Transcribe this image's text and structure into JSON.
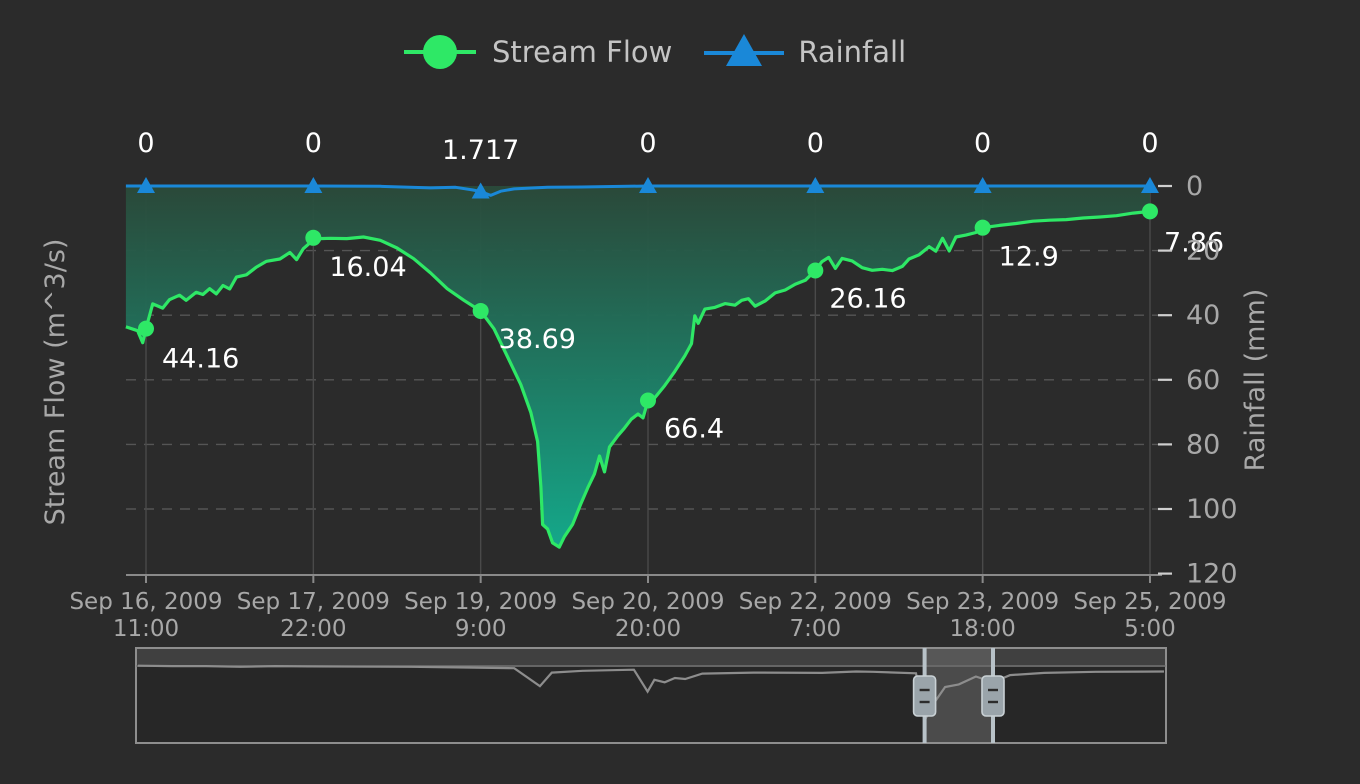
{
  "colors": {
    "background": "#2b2b2b",
    "stream_flow": "#2ee866",
    "rainfall": "#1a88d8",
    "area_top": "#2a4a3a",
    "area_bottom": "#14a88a",
    "axis": "#9a9a9a",
    "grid": "#555555",
    "text": "#ffffff",
    "muted_text": "#a8a8a8"
  },
  "legend": [
    {
      "name": "Stream Flow",
      "icon": "circle-marker-icon",
      "color": "#2ee866"
    },
    {
      "name": "Rainfall",
      "icon": "triangle-marker-icon",
      "color": "#1a88d8"
    }
  ],
  "chart_data": {
    "type": "line",
    "title": "",
    "ylabel_left": "Stream Flow (m^3/s)",
    "ylabel_right": "Rainfall (mm)",
    "ylim_right": [
      0,
      120
    ],
    "right_axis_reversed": true,
    "right_ticks": [
      "0",
      "20",
      "40",
      "60",
      "80",
      "100",
      "120"
    ],
    "grid": "horizontal-dashed",
    "legend_position": "top-center",
    "categories": [
      [
        "Sep 16, 2009",
        "11:00"
      ],
      [
        "Sep 17, 2009",
        "22:00"
      ],
      [
        "Sep 19, 2009",
        "9:00"
      ],
      [
        "Sep 20, 2009",
        "20:00"
      ],
      [
        "Sep 22, 2009",
        "7:00"
      ],
      [
        "Sep 23, 2009",
        "18:00"
      ],
      [
        "Sep 25, 2009",
        "5:00"
      ]
    ],
    "series": [
      {
        "name": "Stream Flow",
        "marker": "circle",
        "labeled_values": [
          "44.16",
          "16.04",
          "38.69",
          "66.4",
          "26.16",
          "12.9",
          "7.86"
        ],
        "trace": [
          [
            -0.12,
            43.6
          ],
          [
            -0.05,
            44.8
          ],
          [
            -0.02,
            48.5
          ],
          [
            0.0,
            44.16
          ],
          [
            0.04,
            36.5
          ],
          [
            0.1,
            37.8
          ],
          [
            0.14,
            35.2
          ],
          [
            0.2,
            33.8
          ],
          [
            0.24,
            35.4
          ],
          [
            0.3,
            32.9
          ],
          [
            0.34,
            33.6
          ],
          [
            0.38,
            31.8
          ],
          [
            0.42,
            33.4
          ],
          [
            0.46,
            30.8
          ],
          [
            0.5,
            31.9
          ],
          [
            0.54,
            28.2
          ],
          [
            0.6,
            27.5
          ],
          [
            0.66,
            25.1
          ],
          [
            0.72,
            23.3
          ],
          [
            0.8,
            22.6
          ],
          [
            0.86,
            20.6
          ],
          [
            0.9,
            22.8
          ],
          [
            0.94,
            19.4
          ],
          [
            0.98,
            17.6
          ],
          [
            1.0,
            16.04
          ],
          [
            1.04,
            16.3
          ],
          [
            1.1,
            16.2
          ],
          [
            1.2,
            16.3
          ],
          [
            1.3,
            15.8
          ],
          [
            1.4,
            16.8
          ],
          [
            1.5,
            19.2
          ],
          [
            1.6,
            22.5
          ],
          [
            1.7,
            26.9
          ],
          [
            1.8,
            31.8
          ],
          [
            1.9,
            35.4
          ],
          [
            2.0,
            38.69
          ],
          [
            2.08,
            44.2
          ],
          [
            2.16,
            52.8
          ],
          [
            2.24,
            61.5
          ],
          [
            2.3,
            70.2
          ],
          [
            2.34,
            79.1
          ],
          [
            2.36,
            93.2
          ],
          [
            2.37,
            104.8
          ],
          [
            2.4,
            106.2
          ],
          [
            2.43,
            110.5
          ],
          [
            2.47,
            111.8
          ],
          [
            2.5,
            108.6
          ],
          [
            2.55,
            104.7
          ],
          [
            2.6,
            98.2
          ],
          [
            2.64,
            93.4
          ],
          [
            2.68,
            89.2
          ],
          [
            2.71,
            83.6
          ],
          [
            2.74,
            88.5
          ],
          [
            2.77,
            80.8
          ],
          [
            2.82,
            77.3
          ],
          [
            2.86,
            74.9
          ],
          [
            2.9,
            72.2
          ],
          [
            2.94,
            70.6
          ],
          [
            2.97,
            71.8
          ],
          [
            3.0,
            66.4
          ],
          [
            3.04,
            65.6
          ],
          [
            3.1,
            61.8
          ],
          [
            3.16,
            57.4
          ],
          [
            3.22,
            52.6
          ],
          [
            3.26,
            48.8
          ],
          [
            3.28,
            40.2
          ],
          [
            3.3,
            42.5
          ],
          [
            3.34,
            38.1
          ],
          [
            3.4,
            37.6
          ],
          [
            3.46,
            36.4
          ],
          [
            3.52,
            36.9
          ],
          [
            3.56,
            35.4
          ],
          [
            3.6,
            34.9
          ],
          [
            3.64,
            37.2
          ],
          [
            3.7,
            35.6
          ],
          [
            3.76,
            33.1
          ],
          [
            3.82,
            32.2
          ],
          [
            3.88,
            30.4
          ],
          [
            3.94,
            29.2
          ],
          [
            4.0,
            26.16
          ],
          [
            4.04,
            23.4
          ],
          [
            4.08,
            22.1
          ],
          [
            4.12,
            25.5
          ],
          [
            4.16,
            22.4
          ],
          [
            4.22,
            23.2
          ],
          [
            4.28,
            25.3
          ],
          [
            4.34,
            26.1
          ],
          [
            4.4,
            25.8
          ],
          [
            4.46,
            26.2
          ],
          [
            4.52,
            24.9
          ],
          [
            4.56,
            22.6
          ],
          [
            4.62,
            21.3
          ],
          [
            4.68,
            18.8
          ],
          [
            4.72,
            20.2
          ],
          [
            4.76,
            16.2
          ],
          [
            4.8,
            20.1
          ],
          [
            4.84,
            15.8
          ],
          [
            4.9,
            15.2
          ],
          [
            4.96,
            14.4
          ],
          [
            5.0,
            12.9
          ],
          [
            5.1,
            12.2
          ],
          [
            5.2,
            11.6
          ],
          [
            5.3,
            10.9
          ],
          [
            5.4,
            10.6
          ],
          [
            5.5,
            10.4
          ],
          [
            5.6,
            9.9
          ],
          [
            5.7,
            9.6
          ],
          [
            5.8,
            9.2
          ],
          [
            5.9,
            8.4
          ],
          [
            6.0,
            7.86
          ]
        ]
      },
      {
        "name": "Rainfall",
        "marker": "triangle",
        "labeled_values": [
          "0",
          "0",
          "1.717",
          "0",
          "0",
          "0",
          "0"
        ],
        "trace": [
          [
            -0.12,
            0
          ],
          [
            0.6,
            0
          ],
          [
            1.0,
            0
          ],
          [
            1.4,
            0.1
          ],
          [
            1.7,
            0.6
          ],
          [
            1.85,
            0.4
          ],
          [
            1.95,
            1.2
          ],
          [
            2.0,
            1.717
          ],
          [
            2.06,
            2.9
          ],
          [
            2.12,
            1.6
          ],
          [
            2.2,
            0.9
          ],
          [
            2.4,
            0.4
          ],
          [
            2.6,
            0.3
          ],
          [
            3.0,
            0
          ],
          [
            4.0,
            0
          ],
          [
            5.0,
            0
          ],
          [
            6.0,
            0
          ]
        ]
      }
    ]
  },
  "navigator": {
    "trace": [
      [
        0.0,
        0.2
      ],
      [
        0.2,
        0.3
      ],
      [
        0.4,
        0.3
      ],
      [
        0.6,
        0.5
      ],
      [
        0.8,
        0.3
      ],
      [
        1.0,
        0.4
      ],
      [
        1.6,
        0.5
      ],
      [
        2.2,
        0.9
      ],
      [
        2.35,
        5.9
      ],
      [
        2.42,
        2.1
      ],
      [
        2.6,
        1.6
      ],
      [
        2.9,
        1.3
      ],
      [
        2.98,
        7.4
      ],
      [
        3.02,
        4.1
      ],
      [
        3.08,
        4.8
      ],
      [
        3.14,
        3.6
      ],
      [
        3.2,
        3.9
      ],
      [
        3.3,
        2.4
      ],
      [
        3.6,
        2.1
      ],
      [
        4.0,
        2.2
      ],
      [
        4.2,
        1.8
      ],
      [
        4.3,
        1.9
      ],
      [
        4.55,
        2.3
      ],
      [
        4.6,
        15.4
      ],
      [
        4.66,
        10.2
      ],
      [
        4.72,
        6.1
      ],
      [
        4.8,
        5.4
      ],
      [
        4.9,
        3.2
      ],
      [
        5.0,
        4.8
      ],
      [
        5.1,
        2.8
      ],
      [
        5.3,
        2.2
      ],
      [
        5.6,
        1.9
      ],
      [
        6.0,
        1.8
      ]
    ],
    "selection": [
      4.6,
      5.0
    ]
  }
}
